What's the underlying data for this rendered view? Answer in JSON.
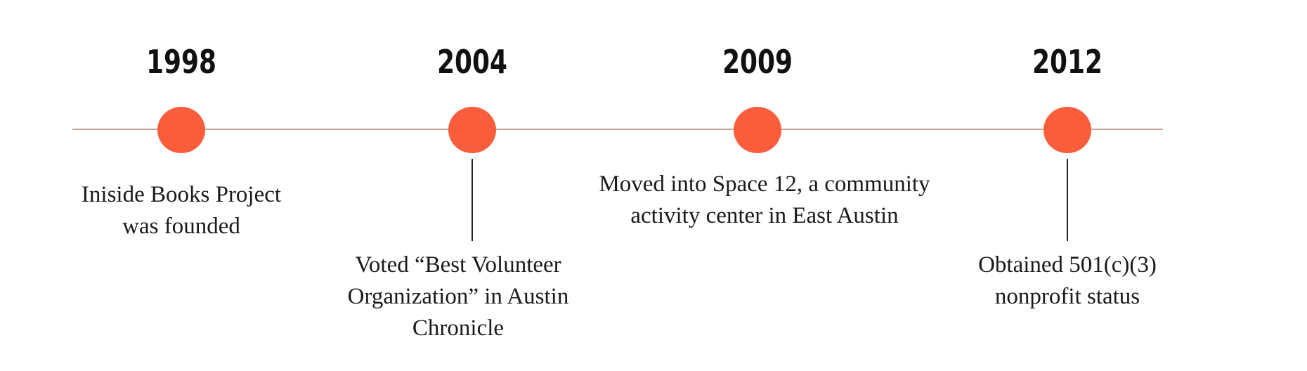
{
  "timeline": {
    "events": [
      {
        "year": "1998",
        "description_lines": [
          "Iniside Books Project",
          "was founded"
        ]
      },
      {
        "year": "2004",
        "description_lines": [
          "Voted “Best Volunteer",
          "Organization” in Austin",
          "Chronicle"
        ]
      },
      {
        "year": "2009",
        "description_lines": [
          "Moved into Space 12, a community",
          "activity center in East Austin"
        ]
      },
      {
        "year": "2012",
        "description_lines": [
          "Obtained 501(c)(3)",
          "nonprofit status"
        ]
      }
    ]
  },
  "colors": {
    "dot": "#fa5d3c",
    "axis_line": "#c4a896",
    "connector": "#222222",
    "text": "#1a1a1a"
  }
}
